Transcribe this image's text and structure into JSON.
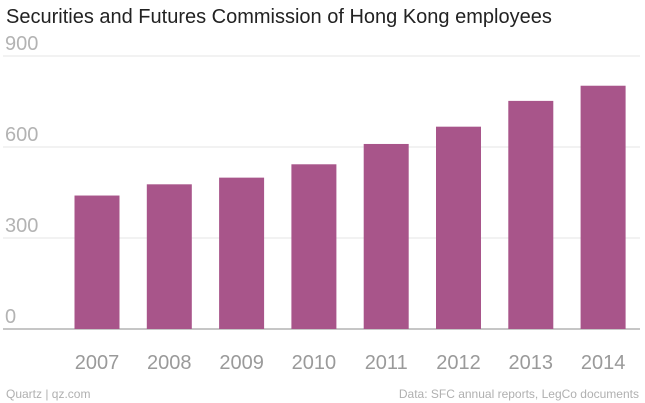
{
  "chart_data": {
    "type": "bar",
    "title": "Securities and Futures Commission of Hong Kong employees",
    "categories": [
      "2007",
      "2008",
      "2009",
      "2010",
      "2011",
      "2012",
      "2013",
      "2014"
    ],
    "series": [
      {
        "values": [
          440,
          477,
          499,
          543,
          610,
          667,
          752,
          802
        ]
      }
    ],
    "ylim": [
      0,
      900
    ],
    "yticks": [
      0,
      300,
      600,
      900
    ],
    "xlabel": "",
    "ylabel": "",
    "grid": true,
    "bar_color": "#a8558a"
  },
  "footer": {
    "credit": "Quartz | qz.com",
    "source": "Data: SFC annual reports, LegCo documents"
  }
}
